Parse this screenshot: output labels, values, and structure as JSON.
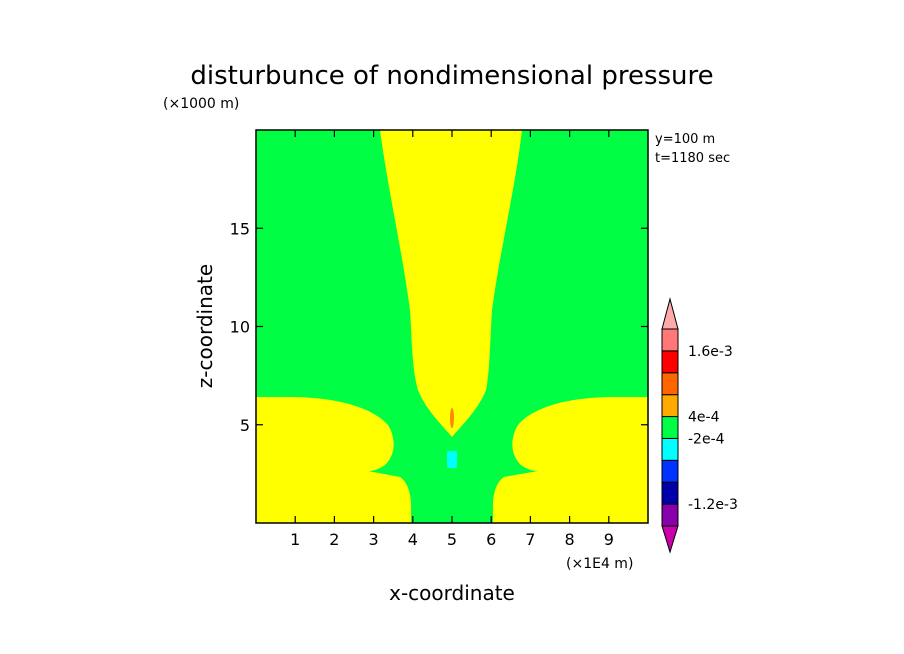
{
  "chart_data": {
    "type": "contour",
    "title": "disturbunce of nondimensional pressure",
    "xlabel": "x-coordinate",
    "ylabel": "z-coordinate",
    "x_unit": "(×1E4 m)",
    "y_unit": "(×1000 m)",
    "info": [
      "y=100 m",
      "t=1180 sec"
    ],
    "xlim": [
      0,
      10
    ],
    "ylim": [
      0,
      20
    ],
    "x_ticks": [
      1,
      2,
      3,
      4,
      5,
      6,
      7,
      8,
      9
    ],
    "y_ticks": [
      5,
      10,
      15
    ],
    "colorbar": {
      "labels": [
        {
          "text": "1.6e-3",
          "level": 8
        },
        {
          "text": "4e-4",
          "level": 5
        },
        {
          "text": "-2e-4",
          "level": 4
        },
        {
          "text": "-1.2e-3",
          "level": 1
        }
      ],
      "colors": [
        "#cc00aa",
        "#8800aa",
        "#0000aa",
        "#0033ff",
        "#00ffff",
        "#00ff44",
        "#ffaa00",
        "#ff6600",
        "#ff0000",
        "#ff7777",
        "#ffaaaa"
      ]
    },
    "regions": {
      "background_color": "#00ff44",
      "positive_color": "#ffff00",
      "small_positive_color": "#ff8800",
      "small_negative_color": "#00ffff",
      "positive_plume_x": [
        3.2,
        6.9
      ],
      "positive_lobes_left_x": [
        0,
        3.8
      ],
      "positive_lobes_right_x": [
        6.5,
        10
      ],
      "positive_lobe_top_z": 6.3,
      "cyan_spot": {
        "x": 5.0,
        "z": 3.2
      },
      "orange_spot": {
        "x": 5.0,
        "z": 5.4
      }
    }
  }
}
